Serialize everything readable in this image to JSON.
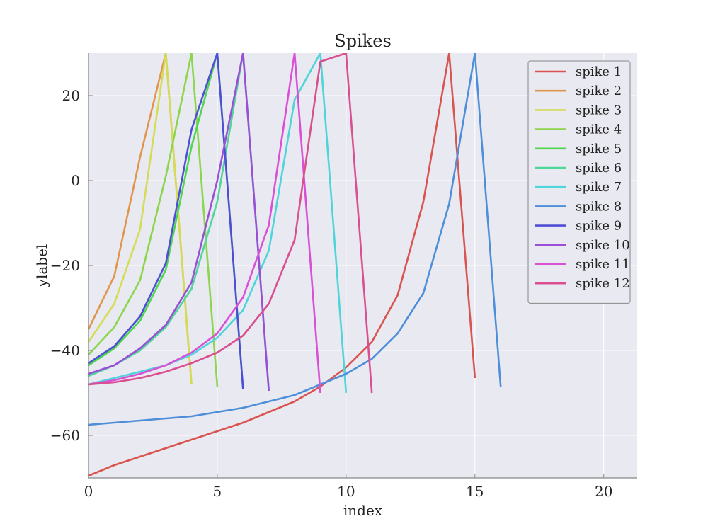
{
  "chart_data": {
    "type": "line",
    "title": "Spikes",
    "xlabel": "index",
    "ylabel": "ylabel",
    "xlim": [
      0,
      21.3
    ],
    "ylim": [
      -70,
      30
    ],
    "xticks": [
      0,
      5,
      10,
      15,
      20
    ],
    "yticks": [
      -60,
      -40,
      -20,
      0,
      20
    ],
    "xtick_labels": [
      "0",
      "5",
      "10",
      "15",
      "20"
    ],
    "ytick_labels": [
      "−60",
      "−40",
      "−20",
      "0",
      "20"
    ],
    "grid": true,
    "legend_position": "top-right",
    "background": "#e9e9f1",
    "series": [
      {
        "name": "spike 1",
        "color": "#d9534f",
        "x": [
          0,
          1,
          2,
          3,
          4,
          5,
          6,
          7,
          8,
          9,
          10,
          11,
          12,
          13,
          14,
          15
        ],
        "values": [
          -69.5,
          -67,
          -65,
          -63,
          -61,
          -59,
          -57,
          -54.5,
          -52,
          -48.5,
          -44,
          -38,
          -27,
          -5,
          30,
          -46.5
        ]
      },
      {
        "name": "spike 2",
        "color": "#e0964a",
        "x": [
          0,
          1,
          2,
          3,
          4
        ],
        "values": [
          -35,
          -22.5,
          5.5,
          30,
          -48
        ]
      },
      {
        "name": "spike 3",
        "color": "#d4dc54",
        "x": [
          0,
          1,
          2,
          3,
          4
        ],
        "values": [
          -38,
          -29,
          -11.5,
          30,
          -48
        ]
      },
      {
        "name": "spike 4",
        "color": "#8cd64e",
        "x": [
          0,
          1,
          2,
          3,
          4,
          5
        ],
        "values": [
          -41,
          -34.5,
          -23.5,
          1,
          30,
          -48.5
        ]
      },
      {
        "name": "spike 5",
        "color": "#4fd64f",
        "x": [
          0,
          1,
          2,
          3,
          4,
          5,
          6
        ],
        "values": [
          -43.5,
          -39.5,
          -33,
          -21,
          8,
          30,
          -49
        ]
      },
      {
        "name": "spike 6",
        "color": "#4fd69a",
        "x": [
          0,
          1,
          2,
          3,
          4,
          5,
          6,
          7
        ],
        "values": [
          -46,
          -43.5,
          -40,
          -34.5,
          -25.5,
          -5,
          30,
          -49.5
        ]
      },
      {
        "name": "spike 7",
        "color": "#4fd4d9",
        "x": [
          0,
          1,
          2,
          3,
          4,
          5,
          6,
          7,
          8,
          9,
          10
        ],
        "values": [
          -48,
          -46.5,
          -45,
          -43.5,
          -41,
          -37,
          -30.5,
          -16.5,
          19,
          30,
          -50
        ]
      },
      {
        "name": "spike 8",
        "color": "#4f8fd9",
        "x": [
          0,
          1,
          2,
          3,
          4,
          5,
          6,
          7,
          8,
          9,
          10,
          11,
          12,
          13,
          14,
          15,
          16
        ],
        "values": [
          -57.5,
          -57,
          -56.5,
          -56,
          -55.5,
          -54.5,
          -53.5,
          -52,
          -50.5,
          -48,
          -45.5,
          -42,
          -36,
          -26.5,
          -5.5,
          30,
          -48.5
        ]
      },
      {
        "name": "spike 9",
        "color": "#4f4fd6",
        "x": [
          0,
          1,
          2,
          3,
          4,
          5,
          6
        ],
        "values": [
          -43,
          -39,
          -32,
          -19.5,
          12,
          30,
          -49
        ]
      },
      {
        "name": "spike 10",
        "color": "#9a4fd6",
        "x": [
          0,
          1,
          2,
          3,
          4,
          5,
          6,
          7
        ],
        "values": [
          -45.5,
          -43.5,
          -39.5,
          -34,
          -24,
          0,
          30,
          -49.5
        ]
      },
      {
        "name": "spike 11",
        "color": "#d94fd6",
        "x": [
          0,
          1,
          2,
          3,
          4,
          5,
          6,
          7,
          8,
          9
        ],
        "values": [
          -48,
          -47,
          -45.5,
          -43.5,
          -40.5,
          -36,
          -27.5,
          -10.5,
          30,
          -50
        ]
      },
      {
        "name": "spike 12",
        "color": "#d94f8f",
        "x": [
          0,
          1,
          2,
          3,
          4,
          5,
          6,
          7,
          8,
          9,
          10,
          11
        ],
        "values": [
          -48,
          -47.5,
          -46.5,
          -45,
          -43,
          -40.5,
          -36.5,
          -29,
          -14,
          28,
          30,
          -50
        ]
      }
    ]
  }
}
